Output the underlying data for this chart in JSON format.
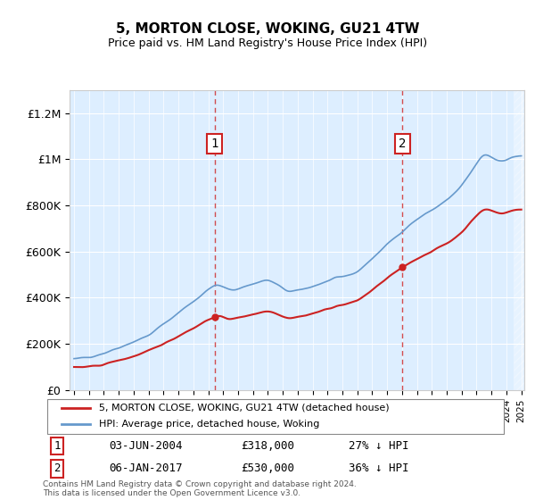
{
  "title": "5, MORTON CLOSE, WOKING, GU21 4TW",
  "subtitle": "Price paid vs. HM Land Registry's House Price Index (HPI)",
  "ylabel": "",
  "ylim": [
    0,
    1300000
  ],
  "yticks": [
    0,
    200000,
    400000,
    600000,
    800000,
    1000000,
    1200000
  ],
  "ytick_labels": [
    "£0",
    "£200K",
    "£400K",
    "£600K",
    "£800K",
    "£1M",
    "£1.2M"
  ],
  "hpi_color": "#6699cc",
  "price_color": "#cc2222",
  "bg_color": "#ddeeff",
  "annotation1": {
    "label": "1",
    "date_x": 2004.42,
    "price": 318000,
    "text": "03-JUN-2004",
    "amount": "£318,000",
    "pct": "27% ↓ HPI"
  },
  "annotation2": {
    "label": "2",
    "date_x": 2017.02,
    "price": 530000,
    "text": "06-JAN-2017",
    "amount": "£530,000",
    "pct": "36% ↓ HPI"
  },
  "legend_line1": "5, MORTON CLOSE, WOKING, GU21 4TW (detached house)",
  "legend_line2": "HPI: Average price, detached house, Woking",
  "footer": "Contains HM Land Registry data © Crown copyright and database right 2024.\nThis data is licensed under the Open Government Licence v3.0.",
  "xmin": 1995,
  "xmax": 2025
}
